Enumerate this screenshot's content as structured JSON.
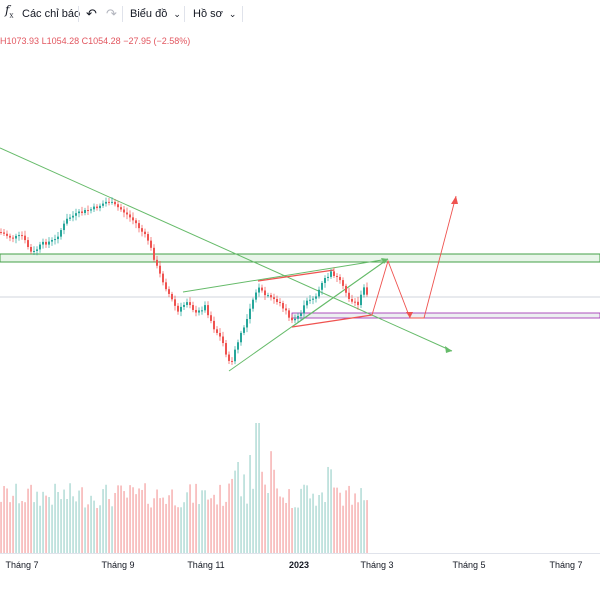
{
  "toolbar": {
    "indicators_label": "Các chỉ báo",
    "chart_label": "Biểu đồ",
    "profile_label": "Hồ sơ"
  },
  "ohlc": {
    "high": "H1073.93",
    "low": "L1054.28",
    "close": "C1054.28",
    "change": "−27.95 (−2.58%)"
  },
  "colors": {
    "up": "#26a69a",
    "down": "#ef5350",
    "trendline": "#4caf50",
    "zone_fill": "#e8f5e9",
    "projection": "#ef5350"
  },
  "axis": {
    "ticks": [
      {
        "label": "Tháng 7"
      },
      {
        "label": "Tháng 9"
      },
      {
        "label": "Tháng 11"
      },
      {
        "label": "2023",
        "bold": true
      },
      {
        "label": "Tháng 3"
      },
      {
        "label": "Tháng 5"
      },
      {
        "label": "Tháng 7"
      }
    ]
  }
}
